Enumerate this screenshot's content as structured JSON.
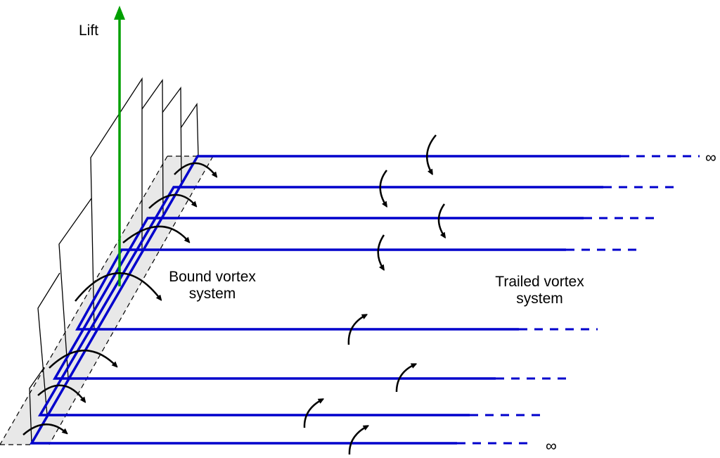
{
  "labels": {
    "lift": "Lift",
    "bound_vortex": [
      "Bound vortex",
      "system"
    ],
    "trailed_vortex": [
      "Trailed vortex",
      "system"
    ],
    "infinity_top": "∞",
    "infinity_bottom": "∞"
  },
  "colors": {
    "vortex": "#0000cc",
    "lift_arrow": "#00a000",
    "wing_band": "#e8e8e8",
    "outline": "#000000"
  }
}
